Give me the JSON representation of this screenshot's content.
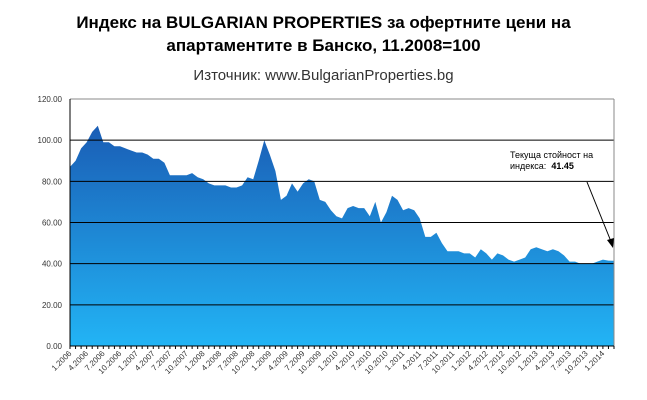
{
  "chart_data": {
    "type": "area",
    "title_line1": "Индекс на BULGARIAN PROPERTIES за офертните цени на",
    "title_line2": "апартаментите  в Банско, 11.2008=100",
    "subtitle": "Източник: www.BulgarianProperties.bg",
    "ylim": [
      0,
      120
    ],
    "yticks": [
      "0.00",
      "20.00",
      "40.00",
      "60.00",
      "80.00",
      "100.00",
      "120.00"
    ],
    "xtick_labels": [
      "1.2006",
      "4.2006",
      "7.2006",
      "10.2006",
      "1.2007",
      "4.2007",
      "7.2007",
      "10.2007",
      "1.2008",
      "4.2008",
      "7.2008",
      "10.2008",
      "1.2009",
      "4.2009",
      "7.2009",
      "10.2009",
      "1.2010",
      "4.2010",
      "7.2010",
      "10.2010",
      "1.2011",
      "4.2011",
      "7.2011",
      "10.2011",
      "1.2012",
      "4.2012",
      "7.2012",
      "10.2012",
      "1.2013",
      "4.2013",
      "7.2013",
      "10.2013",
      "1.2014"
    ],
    "grid": true,
    "values": [
      87,
      90,
      96,
      99,
      104,
      107,
      99,
      99,
      97,
      97,
      96,
      95,
      94,
      94,
      93,
      91,
      91,
      89,
      83,
      83,
      83,
      83,
      84,
      82,
      81,
      79,
      78,
      78,
      78,
      77,
      77,
      78,
      82,
      81,
      90,
      100,
      93,
      85,
      71,
      73,
      79,
      75,
      79,
      81,
      80,
      71,
      70,
      66,
      63,
      62,
      67,
      68,
      67,
      67,
      63,
      70,
      60,
      65,
      73,
      71,
      66,
      67,
      66,
      62,
      53,
      53,
      55,
      50,
      46,
      46,
      46,
      45,
      45,
      43,
      47,
      45,
      42,
      45,
      44,
      42,
      41,
      42,
      43,
      47,
      48,
      47,
      46,
      47,
      46,
      44,
      41,
      41,
      40,
      40,
      40,
      41,
      42,
      41.5,
      41.45
    ],
    "annotation_line1": "Текуща  стойност на",
    "annotation_label": "индекса:",
    "annotation_value": "41.45",
    "colors": {
      "top": "#1a5db5",
      "bottom": "#22b4f5"
    }
  }
}
